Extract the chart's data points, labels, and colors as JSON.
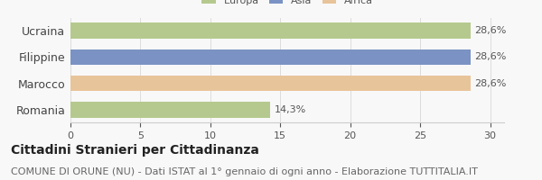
{
  "categories": [
    "Ucraina",
    "Filippine",
    "Marocco",
    "Romania"
  ],
  "values": [
    28.6,
    28.6,
    28.6,
    14.3
  ],
  "bar_colors": [
    "#b5c98e",
    "#7b93c4",
    "#e8c49a",
    "#b5c98e"
  ],
  "bar_labels": [
    "28,6%",
    "28,6%",
    "28,6%",
    "14,3%"
  ],
  "legend_entries": [
    {
      "label": "Europa",
      "color": "#b5c98e"
    },
    {
      "label": "Asia",
      "color": "#7b93c4"
    },
    {
      "label": "Africa",
      "color": "#e8c49a"
    }
  ],
  "xlim": [
    0,
    31
  ],
  "xticks": [
    0,
    5,
    10,
    15,
    20,
    25,
    30
  ],
  "title": "Cittadini Stranieri per Cittadinanza",
  "subtitle": "COMUNE DI ORUNE (NU) - Dati ISTAT al 1° gennaio di ogni anno - Elaborazione TUTTITALIA.IT",
  "background_color": "#f8f8f8",
  "bar_height": 0.6,
  "label_fontsize": 8,
  "tick_fontsize": 8,
  "ytick_fontsize": 9,
  "title_fontsize": 10,
  "subtitle_fontsize": 8
}
